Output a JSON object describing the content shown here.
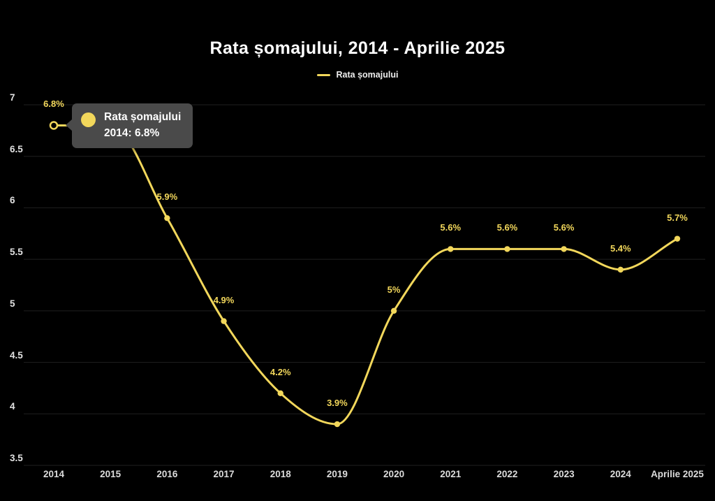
{
  "title": "Rata șomajului, 2014 - Aprilie 2025",
  "legend": {
    "label": "Rata șomajului"
  },
  "tooltip": {
    "series_label": "Rata șomajului",
    "value_line": "2014: 6.8%"
  },
  "colors": {
    "background": "#000000",
    "series": "#F2D75B",
    "grid": "#212121",
    "axis_text": "#e2e2e2",
    "point_label_text": "#F2D75B",
    "tooltip_bg": "#4a4a4a",
    "tooltip_text": "#ffffff",
    "title_text": "#ffffff",
    "active_marker_fill": "#000000"
  },
  "chart_data": {
    "type": "line",
    "title": "Rata șomajului, 2014 - Aprilie 2025",
    "legend_entries": [
      "Rata șomajului"
    ],
    "legend_position": "top",
    "categories": [
      "2014",
      "2015",
      "2016",
      "2017",
      "2018",
      "2019",
      "2020",
      "2021",
      "2022",
      "2023",
      "2024",
      "Aprilie 2025"
    ],
    "series": [
      {
        "name": "Rata șomajului",
        "values": [
          6.8,
          6.8,
          5.9,
          4.9,
          4.2,
          3.9,
          5.0,
          5.6,
          5.6,
          5.6,
          5.4,
          5.7
        ]
      }
    ],
    "point_labels": [
      "6.8%",
      "",
      "5.9%",
      "4.9%",
      "4.2%",
      "3.9%",
      "5%",
      "5.6%",
      "5.6%",
      "5.6%",
      "5.4%",
      "5.7%"
    ],
    "ylim": [
      3.5,
      7
    ],
    "yticks": [
      "3.5",
      "4",
      "4.5",
      "5",
      "5.5",
      "6",
      "6.5",
      "7"
    ],
    "xlabel": "",
    "ylabel": "",
    "grid": "horizontal",
    "active_point": {
      "category": "2014",
      "index": 0,
      "label": "6.8%"
    }
  }
}
